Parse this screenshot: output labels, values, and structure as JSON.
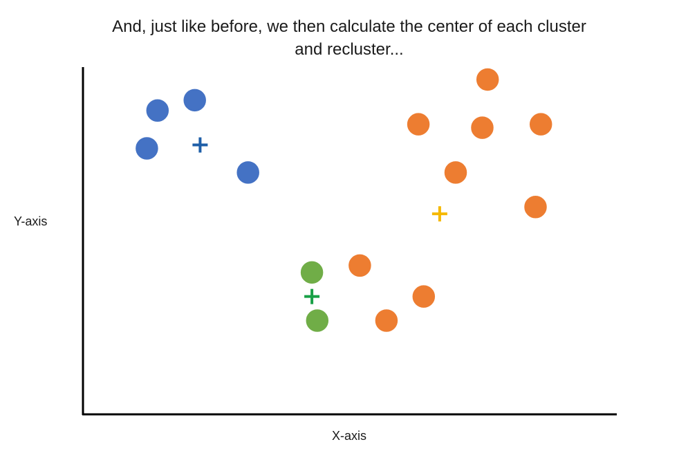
{
  "chart_data": {
    "type": "scatter",
    "title": "And, just like before, we then calculate the center of each cluster and recluster...",
    "xlabel": "X-axis",
    "ylabel": "Y-axis",
    "grid": false,
    "xlim": [
      0,
      100
    ],
    "ylim": [
      0,
      100
    ],
    "series": [
      {
        "color": "#4472c4",
        "points": [
          {
            "x": 14,
            "y": 88
          },
          {
            "x": 21,
            "y": 91
          },
          {
            "x": 12,
            "y": 77
          },
          {
            "x": 31,
            "y": 70
          }
        ]
      },
      {
        "color": "#ed7d31",
        "points": [
          {
            "x": 76,
            "y": 97
          },
          {
            "x": 63,
            "y": 84
          },
          {
            "x": 75,
            "y": 83
          },
          {
            "x": 86,
            "y": 84
          },
          {
            "x": 70,
            "y": 70
          },
          {
            "x": 85,
            "y": 60
          },
          {
            "x": 52,
            "y": 43
          },
          {
            "x": 64,
            "y": 34
          },
          {
            "x": 57,
            "y": 27
          }
        ]
      },
      {
        "color": "#70ad47",
        "points": [
          {
            "x": 43,
            "y": 41
          },
          {
            "x": 44,
            "y": 27
          }
        ]
      }
    ],
    "centroids": [
      {
        "x": 22,
        "y": 78,
        "color": "#1f5fa8"
      },
      {
        "x": 67,
        "y": 58,
        "color": "#f5b800"
      },
      {
        "x": 43,
        "y": 34,
        "color": "#18a046"
      }
    ]
  }
}
